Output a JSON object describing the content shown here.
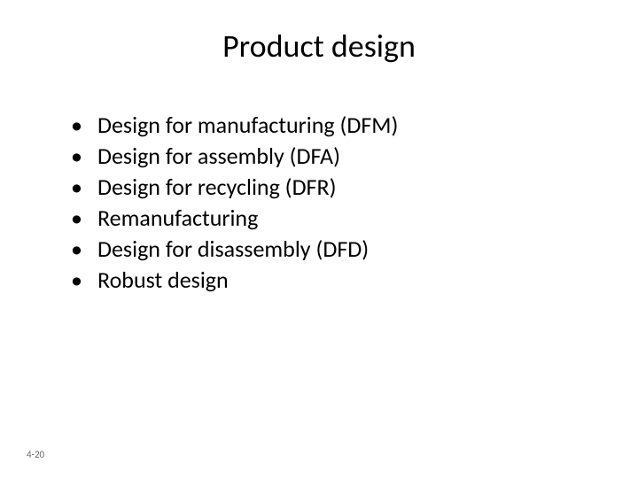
{
  "title": "Product design",
  "bullets": {
    "item0": "Design for manufacturing (DFM)",
    "item1": "Design for assembly (DFA)",
    "item2": "Design for recycling (DFR)",
    "item3": "Remanufacturing",
    "item4": "Design for disassembly (DFD)",
    "item5": "Robust design"
  },
  "footer": "4-20",
  "colors": {
    "background": "#ffffff",
    "text": "#000000",
    "footer": "#666666"
  },
  "typography": {
    "title_fontsize": 36,
    "bullet_fontsize": 26,
    "footer_fontsize": 11,
    "font_family": "Calibri"
  }
}
